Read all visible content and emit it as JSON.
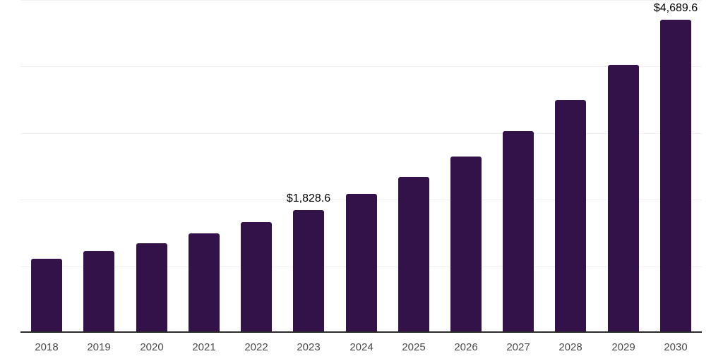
{
  "chart": {
    "background_color": "#ffffff",
    "bar_color": "#33124a",
    "axis_line_color": "#2b2b2b",
    "gridline_color": "#f1f1f2",
    "x_label_color": "#4a4a4a",
    "data_label_color": "#000000"
  },
  "chart_data": {
    "type": "bar",
    "title": "",
    "xlabel": "",
    "ylabel": "",
    "categories": [
      "2018",
      "2019",
      "2020",
      "2021",
      "2022",
      "2023",
      "2024",
      "2025",
      "2026",
      "2027",
      "2028",
      "2029",
      "2030"
    ],
    "values": [
      1100,
      1220,
      1340,
      1480,
      1650,
      1828.6,
      2080,
      2330,
      2640,
      3020,
      3480,
      4010,
      4689.6
    ],
    "data_labels": [
      {
        "category": "2023",
        "text": "$1,828.6"
      },
      {
        "category": "2030",
        "text": "$4,689.6"
      }
    ],
    "ylim": [
      0,
      5000
    ],
    "gridline_step": 1000,
    "grid": true,
    "legend": false,
    "y_axis_tick_labels_visible": false
  }
}
